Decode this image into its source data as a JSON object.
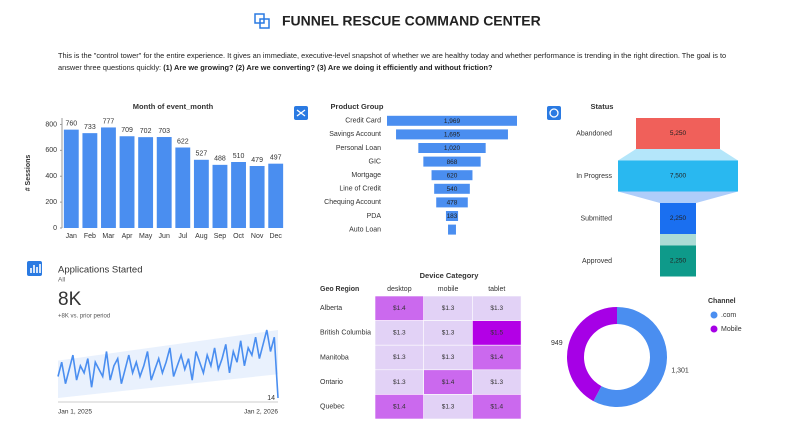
{
  "header": {
    "title": "FUNNEL RESCUE COMMAND CENTER"
  },
  "description": {
    "text": "This is the \"control tower\" for the entire experience. It gives an immediate, executive-level snapshot of whether we are healthy today and whether performance is trending in the right direction. The goal is to answer three questions quickly:",
    "questions": "(1) Are we growing? (2) Are we converting? (3) Are we doing it efficiently and without friction?"
  },
  "chart_data": [
    {
      "type": "bar",
      "title": "Month of event_month",
      "y_label": "# Sessions",
      "categories": [
        "Jan",
        "Feb",
        "Mar",
        "Apr",
        "May",
        "Jun",
        "Jul",
        "Aug",
        "Sep",
        "Oct",
        "Nov",
        "Dec"
      ],
      "values": [
        760,
        733,
        777,
        709,
        702,
        703,
        622,
        527,
        488,
        510,
        479,
        497
      ],
      "color": "#4a8ef0",
      "ylim": [
        0,
        850
      ],
      "yticks": [
        0,
        200,
        400,
        600,
        800
      ]
    },
    {
      "type": "funnel",
      "title": "Product Group",
      "categories": [
        "Credit Card",
        "Savings Account",
        "Personal Loan",
        "GIC",
        "Mortgage",
        "Line of Credit",
        "Chequing Account",
        "PDA",
        "Auto Loan"
      ],
      "values": [
        1969,
        1695,
        1020,
        868,
        620,
        540,
        478,
        183,
        120
      ],
      "value_labels": [
        "1,969",
        "1,695",
        "1,020",
        "868",
        "620",
        "540",
        "478",
        "183",
        null
      ],
      "color": "#4a8ef0"
    },
    {
      "type": "status-funnel",
      "title": "Status",
      "categories": [
        "Abandoned",
        "In Progress",
        "Submitted",
        "Approved"
      ],
      "values": [
        5250,
        7500,
        2250,
        2250
      ],
      "value_labels": [
        "5,250",
        "7,500",
        "2,250",
        "2,250"
      ],
      "colors": [
        "#f0605a",
        "#29b8f0",
        "#1a6ff0",
        "#0e9a8a"
      ]
    },
    {
      "type": "kpi-line",
      "title": "Applications Started",
      "subtitle": "All",
      "kpi": "8K",
      "delta": "+8K vs. prior period",
      "x_start": "Jan 1, 2025",
      "x_end": "Jan 2, 2026",
      "color": "#4a8ef0",
      "values": [
        20,
        24,
        18,
        22,
        26,
        19,
        23,
        21,
        25,
        17,
        24,
        22,
        20,
        27,
        19,
        23,
        25,
        18,
        22,
        26,
        21,
        24,
        20,
        23,
        27,
        19,
        22,
        25,
        21,
        24,
        28,
        20,
        23,
        26,
        22,
        25,
        19,
        27,
        24,
        21,
        26,
        23,
        28,
        22,
        25,
        29,
        21,
        27,
        24,
        30,
        23,
        28,
        26,
        31,
        25,
        29,
        33,
        27,
        31,
        14
      ]
    },
    {
      "type": "heatmap",
      "title": "Device Category",
      "row_header": "Geo Region",
      "columns": [
        "desktop",
        "mobile",
        "tablet"
      ],
      "rows": [
        "Alberta",
        "British Columbia",
        "Manitoba",
        "Ontario",
        "Quebec"
      ],
      "values": [
        [
          1.4,
          1.3,
          1.3
        ],
        [
          1.3,
          1.3,
          1.5
        ],
        [
          1.3,
          1.3,
          1.4
        ],
        [
          1.3,
          1.4,
          1.3
        ],
        [
          1.4,
          1.3,
          1.4
        ]
      ],
      "value_labels": [
        [
          "$1.4",
          "$1.3",
          "$1.3"
        ],
        [
          "$1.3",
          "$1.3",
          "$1.5"
        ],
        [
          "$1.3",
          "$1.3",
          "$1.4"
        ],
        [
          "$1.3",
          "$1.4",
          "$1.3"
        ],
        [
          "$1.4",
          "$1.3",
          "$1.4"
        ]
      ],
      "colors": [
        "#e2d2f6",
        "#b300e6"
      ]
    },
    {
      "type": "donut",
      "title": "Channel",
      "series": [
        {
          "name": ".com",
          "color": "#4a8ef0",
          "value": 1301,
          "value_label": "1,301"
        },
        {
          "name": "Mobile",
          "color": "#a600e6",
          "value": 949,
          "value_label": "949"
        }
      ]
    }
  ]
}
